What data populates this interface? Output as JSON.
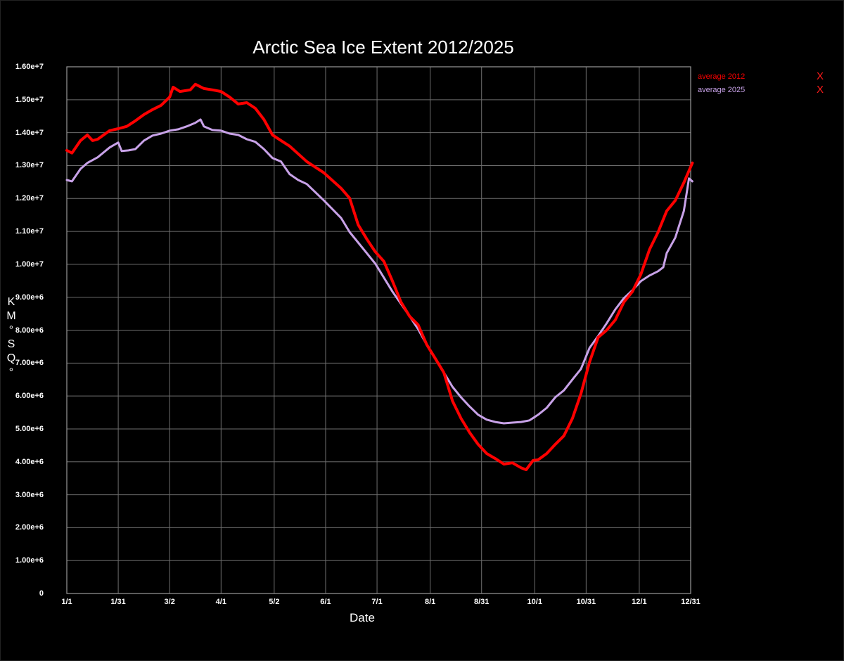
{
  "chart_data": {
    "type": "line",
    "title": "Arctic Sea Ice Extent 2012/2025",
    "xlabel": "Date",
    "ylabel": "KM°SQ°",
    "ylabel_chars": [
      "K",
      "M",
      "°",
      "S",
      "Q",
      "°"
    ],
    "ylim": [
      0,
      16000000
    ],
    "xlim_days": [
      0,
      365
    ],
    "grid": true,
    "legend_position": "top-right, outside plot",
    "y_ticks": [
      "0",
      "1.00e+6",
      "2.00e+6",
      "3.00e+6",
      "4.00e+6",
      "5.00e+6",
      "6.00e+6",
      "7.00e+6",
      "8.00e+6",
      "9.00e+6",
      "1.00e+7",
      "1.10e+7",
      "1.20e+7",
      "1.30e+7",
      "1.40e+7",
      "1.50e+7",
      "1.60e+7"
    ],
    "x_ticks": [
      {
        "label": "1/1",
        "day": 0
      },
      {
        "label": "1/31",
        "day": 30
      },
      {
        "label": "3/2",
        "day": 60
      },
      {
        "label": "4/1",
        "day": 90
      },
      {
        "label": "5/2",
        "day": 121
      },
      {
        "label": "6/1",
        "day": 151
      },
      {
        "label": "7/1",
        "day": 181
      },
      {
        "label": "8/1",
        "day": 212
      },
      {
        "label": "8/31",
        "day": 242
      },
      {
        "label": "10/1",
        "day": 273
      },
      {
        "label": "10/31",
        "day": 303
      },
      {
        "label": "12/1",
        "day": 334
      },
      {
        "label": "12/31",
        "day": 364
      }
    ],
    "series": [
      {
        "name": "average 2012",
        "color": "#ff0000",
        "line_width": 4,
        "x_days": [
          0,
          3,
          8,
          12,
          15,
          18,
          25,
          30,
          35,
          40,
          45,
          50,
          55,
          60,
          62,
          66,
          72,
          75,
          80,
          85,
          90,
          95,
          100,
          105,
          110,
          115,
          120,
          125,
          130,
          140,
          150,
          160,
          165,
          170,
          175,
          180,
          185,
          190,
          195,
          200,
          205,
          210,
          215,
          220,
          225,
          230,
          235,
          240,
          245,
          250,
          255,
          260,
          265,
          268,
          272,
          275,
          280,
          285,
          290,
          295,
          300,
          305,
          310,
          315,
          320,
          325,
          330,
          335,
          340,
          345,
          350,
          355,
          360,
          365
        ],
        "values_millions": [
          13.46,
          13.38,
          13.76,
          13.93,
          13.76,
          13.8,
          14.06,
          14.12,
          14.19,
          14.36,
          14.55,
          14.7,
          14.83,
          15.08,
          15.38,
          15.25,
          15.3,
          15.47,
          15.34,
          15.3,
          15.25,
          15.08,
          14.87,
          14.91,
          14.74,
          14.4,
          13.93,
          13.76,
          13.59,
          13.12,
          12.78,
          12.31,
          12.01,
          11.2,
          10.77,
          10.38,
          10.09,
          9.49,
          8.85,
          8.42,
          8.16,
          7.56,
          7.14,
          6.71,
          5.85,
          5.32,
          4.89,
          4.53,
          4.25,
          4.1,
          3.93,
          3.97,
          3.82,
          3.76,
          4.04,
          4.06,
          4.25,
          4.53,
          4.79,
          5.32,
          6.07,
          7.03,
          7.78,
          8.0,
          8.31,
          8.85,
          9.17,
          9.7,
          10.45,
          10.98,
          11.62,
          11.94,
          12.48,
          13.08
        ]
      },
      {
        "name": "average 2025",
        "color": "#c8a2e8",
        "line_width": 3,
        "x_days": [
          0,
          3,
          8,
          12,
          18,
          25,
          30,
          32,
          36,
          40,
          45,
          50,
          55,
          60,
          65,
          70,
          75,
          78,
          80,
          85,
          90,
          95,
          100,
          105,
          110,
          115,
          120,
          125,
          130,
          135,
          140,
          150,
          160,
          165,
          170,
          180,
          190,
          200,
          205,
          210,
          215,
          220,
          225,
          230,
          235,
          240,
          245,
          250,
          255,
          260,
          265,
          270,
          275,
          280,
          285,
          290,
          295,
          300,
          305,
          310,
          315,
          320,
          325,
          330,
          335,
          340,
          345,
          348,
          350,
          355,
          360,
          363,
          365
        ],
        "values_millions": [
          12.56,
          12.52,
          12.9,
          13.08,
          13.25,
          13.55,
          13.7,
          13.44,
          13.46,
          13.5,
          13.76,
          13.91,
          13.97,
          14.06,
          14.1,
          14.19,
          14.3,
          14.4,
          14.19,
          14.08,
          14.06,
          13.97,
          13.93,
          13.8,
          13.72,
          13.5,
          13.23,
          13.12,
          12.74,
          12.56,
          12.44,
          11.94,
          11.41,
          10.98,
          10.66,
          10.02,
          9.17,
          8.42,
          8.03,
          7.56,
          7.14,
          6.71,
          6.28,
          5.96,
          5.68,
          5.43,
          5.28,
          5.21,
          5.17,
          5.19,
          5.21,
          5.26,
          5.43,
          5.64,
          5.96,
          6.17,
          6.5,
          6.82,
          7.46,
          7.82,
          8.21,
          8.63,
          8.97,
          9.21,
          9.49,
          9.66,
          9.79,
          9.91,
          10.34,
          10.81,
          11.62,
          12.61,
          12.52
        ]
      }
    ]
  },
  "legend": {
    "items": [
      {
        "label": "average 2012",
        "color": "#ff0000",
        "remove_label": "X"
      },
      {
        "label": "average 2025",
        "color": "#c8a2e8",
        "remove_label": "X"
      }
    ]
  },
  "colors": {
    "background": "#000000",
    "grid": "#6e6e6e",
    "axis": "#9a9a9a",
    "text": "#ffffff",
    "remove_x": "#ff1a1a"
  }
}
